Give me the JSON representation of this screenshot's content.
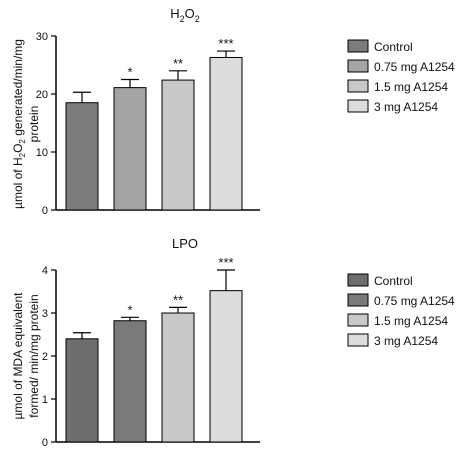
{
  "chart_data": [
    {
      "type": "bar",
      "title_main": "H",
      "title_sub": "2",
      "title_main2": "O",
      "title_sub2": "2",
      "title_text": "H2O2",
      "ylabel_line1_a": "µmol of H",
      "ylabel_line1_sub": "2",
      "ylabel_line1_b": "O",
      "ylabel_line1_sub2": "2",
      "ylabel_line1_c": " generated/min/mg",
      "ylabel_line2": "protein",
      "ylim": [
        0,
        30
      ],
      "yticks": [
        "0",
        "10",
        "20",
        "30"
      ],
      "ytick_values": [
        0,
        10,
        20,
        30
      ],
      "categories": [
        "Control",
        "0.75 mg A1254",
        "1.5 mg A1254",
        "3 mg A1254"
      ],
      "values": [
        18.5,
        21.1,
        22.4,
        26.3
      ],
      "errors": [
        1.8,
        1.4,
        1.6,
        1.1
      ],
      "significance": [
        "",
        "*",
        "**",
        "***"
      ],
      "colors": [
        "#7c7c7c",
        "#a4a4a4",
        "#c8c8c8",
        "#dcdcdc"
      ],
      "legend_position": "right"
    },
    {
      "type": "bar",
      "title": "LPO",
      "ylabel_line1": "µmol of MDA equivalent",
      "ylabel_line2": "formed/ min/mg protein",
      "ylim": [
        0,
        4
      ],
      "yticks": [
        "0",
        "1",
        "2",
        "3",
        "4"
      ],
      "ytick_values": [
        0,
        1,
        2,
        3,
        4
      ],
      "categories": [
        "Control",
        "0.75 mg A1254",
        "1.5 mg A1254",
        "3 mg A1254"
      ],
      "values": [
        2.4,
        2.82,
        3.0,
        3.52
      ],
      "errors": [
        0.14,
        0.08,
        0.13,
        0.48
      ],
      "significance": [
        "",
        "*",
        "**",
        "***"
      ],
      "colors": [
        "#6e6e6e",
        "#7a7a7a",
        "#c8c8c8",
        "#dcdcdc"
      ],
      "legend_position": "right"
    }
  ]
}
